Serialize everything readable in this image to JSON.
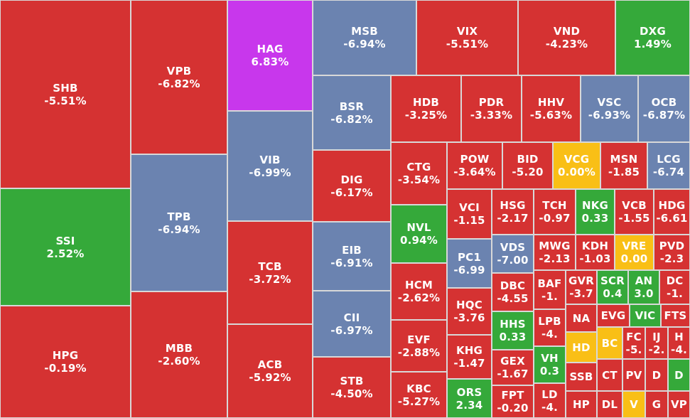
{
  "colors": {
    "down": "#d53232",
    "up": "#35a93a",
    "ceiling": "#c837ec",
    "floor": "#6b83b0",
    "flat": "#f9bf16"
  },
  "chart_data": {
    "type": "treemap",
    "title": "",
    "tiles": [
      {
        "ticker": "SHB",
        "change": "-5.51%",
        "value": -5.51,
        "status": "down"
      },
      {
        "ticker": "SSI",
        "change": "2.52%",
        "value": 2.52,
        "status": "up"
      },
      {
        "ticker": "HPG",
        "change": "-0.19%",
        "value": -0.19,
        "status": "down"
      },
      {
        "ticker": "VPB",
        "change": "-6.82%",
        "value": -6.82,
        "status": "down"
      },
      {
        "ticker": "TPB",
        "change": "-6.94%",
        "value": -6.94,
        "status": "floor"
      },
      {
        "ticker": "MBB",
        "change": "-2.60%",
        "value": -2.6,
        "status": "down"
      },
      {
        "ticker": "HAG",
        "change": "6.83%",
        "value": 6.83,
        "status": "ceiling"
      },
      {
        "ticker": "VIB",
        "change": "-6.99%",
        "value": -6.99,
        "status": "floor"
      },
      {
        "ticker": "TCB",
        "change": "-3.72%",
        "value": -3.72,
        "status": "down"
      },
      {
        "ticker": "ACB",
        "change": "-5.92%",
        "value": -5.92,
        "status": "down"
      },
      {
        "ticker": "MSB",
        "change": "-6.94%",
        "value": -6.94,
        "status": "floor"
      },
      {
        "ticker": "VIX",
        "change": "-5.51%",
        "value": -5.51,
        "status": "down"
      },
      {
        "ticker": "VND",
        "change": "-4.23%",
        "value": -4.23,
        "status": "down"
      },
      {
        "ticker": "DXG",
        "change": "1.49%",
        "value": 1.49,
        "status": "up"
      },
      {
        "ticker": "BSR",
        "change": "-6.82%",
        "value": -6.82,
        "status": "floor"
      },
      {
        "ticker": "DIG",
        "change": "-6.17%",
        "value": -6.17,
        "status": "down"
      },
      {
        "ticker": "EIB",
        "change": "-6.91%",
        "value": -6.91,
        "status": "floor"
      },
      {
        "ticker": "CII",
        "change": "-6.97%",
        "value": -6.97,
        "status": "floor"
      },
      {
        "ticker": "STB",
        "change": "-4.50%",
        "value": -4.5,
        "status": "down"
      },
      {
        "ticker": "HDB",
        "change": "-3.25%",
        "value": -3.25,
        "status": "down"
      },
      {
        "ticker": "PDR",
        "change": "-3.33%",
        "value": -3.33,
        "status": "down"
      },
      {
        "ticker": "HHV",
        "change": "-5.63%",
        "value": -5.63,
        "status": "down"
      },
      {
        "ticker": "VSC",
        "change": "-6.93%",
        "value": -6.93,
        "status": "floor"
      },
      {
        "ticker": "OCB",
        "change": "-6.87%",
        "value": -6.87,
        "status": "floor"
      },
      {
        "ticker": "CTG",
        "change": "-3.54%",
        "value": -3.54,
        "status": "down"
      },
      {
        "ticker": "NVL",
        "change": "0.94%",
        "value": 0.94,
        "status": "up"
      },
      {
        "ticker": "HCM",
        "change": "-2.62%",
        "value": -2.62,
        "status": "down"
      },
      {
        "ticker": "EVF",
        "change": "-2.88%",
        "value": -2.88,
        "status": "down"
      },
      {
        "ticker": "KBC",
        "change": "-5.27%",
        "value": -5.27,
        "status": "down"
      },
      {
        "ticker": "POW",
        "change": "-3.64%",
        "value": -3.64,
        "status": "down"
      },
      {
        "ticker": "BID",
        "change": "-5.20",
        "value": -5.2,
        "status": "down"
      },
      {
        "ticker": "VCG",
        "change": "0.00%",
        "value": 0.0,
        "status": "flat"
      },
      {
        "ticker": "MSN",
        "change": "-1.85",
        "value": -1.85,
        "status": "down"
      },
      {
        "ticker": "LCG",
        "change": "-6.74",
        "value": -6.74,
        "status": "floor"
      },
      {
        "ticker": "VCI",
        "change": "-1.15",
        "value": -1.15,
        "status": "down"
      },
      {
        "ticker": "HSG",
        "change": "-2.17",
        "value": -2.17,
        "status": "down"
      },
      {
        "ticker": "TCH",
        "change": "-0.97",
        "value": -0.97,
        "status": "down"
      },
      {
        "ticker": "NKG",
        "change": "0.33",
        "value": 0.33,
        "status": "up"
      },
      {
        "ticker": "VCB",
        "change": "-1.55",
        "value": -1.55,
        "status": "down"
      },
      {
        "ticker": "HDG",
        "change": "-6.61",
        "value": -6.61,
        "status": "down"
      },
      {
        "ticker": "PC1",
        "change": "-6.99",
        "value": -6.99,
        "status": "floor"
      },
      {
        "ticker": "VDS",
        "change": "-7.00",
        "value": -7.0,
        "status": "floor"
      },
      {
        "ticker": "MWG",
        "change": "-2.13",
        "value": -2.13,
        "status": "down"
      },
      {
        "ticker": "KDH",
        "change": "-1.03",
        "value": -1.03,
        "status": "down"
      },
      {
        "ticker": "VRE",
        "change": "0.00",
        "value": 0.0,
        "status": "flat"
      },
      {
        "ticker": "PVD",
        "change": "-2.3",
        "value": -2.3,
        "status": "down"
      },
      {
        "ticker": "HQC",
        "change": "-3.76",
        "value": -3.76,
        "status": "down"
      },
      {
        "ticker": "DBC",
        "change": "-4.55",
        "value": -4.55,
        "status": "down"
      },
      {
        "ticker": "BAF",
        "change": "-1.",
        "value": -1,
        "status": "down"
      },
      {
        "ticker": "GVR",
        "change": "-3.7",
        "value": -3.7,
        "status": "down"
      },
      {
        "ticker": "SCR",
        "change": "0.4",
        "value": 0.4,
        "status": "up"
      },
      {
        "ticker": "AN",
        "change": "3.0",
        "value": 3.0,
        "status": "up"
      },
      {
        "ticker": "DC",
        "change": "-1.",
        "value": -1,
        "status": "down"
      },
      {
        "ticker": "KHG",
        "change": "-1.47",
        "value": -1.47,
        "status": "down"
      },
      {
        "ticker": "HHS",
        "change": "0.33",
        "value": 0.33,
        "status": "up"
      },
      {
        "ticker": "LPB",
        "change": "-4.",
        "value": -4,
        "status": "down"
      },
      {
        "ticker": "NA",
        "change": "",
        "value": null,
        "status": "down"
      },
      {
        "ticker": "EVG",
        "change": "",
        "value": null,
        "status": "down"
      },
      {
        "ticker": "VIC",
        "change": "",
        "value": null,
        "status": "up"
      },
      {
        "ticker": "FTS",
        "change": "",
        "value": null,
        "status": "down"
      },
      {
        "ticker": "HD",
        "change": "",
        "value": null,
        "status": "flat"
      },
      {
        "ticker": "BC",
        "change": "",
        "value": null,
        "status": "flat"
      },
      {
        "ticker": "FC",
        "change": "-5.",
        "value": -5,
        "status": "down"
      },
      {
        "ticker": "IJ",
        "change": "-2.",
        "value": -2,
        "status": "down"
      },
      {
        "ticker": "H",
        "change": "-4.",
        "value": -4,
        "status": "down"
      },
      {
        "ticker": "ORS",
        "change": "2.34",
        "value": 2.34,
        "status": "up"
      },
      {
        "ticker": "GEX",
        "change": "-1.67",
        "value": -1.67,
        "status": "down"
      },
      {
        "ticker": "VH",
        "change": "0.3",
        "value": 0.3,
        "status": "up"
      },
      {
        "ticker": "SSB",
        "change": "",
        "value": null,
        "status": "down"
      },
      {
        "ticker": "CT",
        "change": "",
        "value": null,
        "status": "down"
      },
      {
        "ticker": "PV",
        "change": "",
        "value": null,
        "status": "down"
      },
      {
        "ticker": "D",
        "change": "",
        "value": null,
        "status": "down"
      },
      {
        "ticker": "D",
        "change": "",
        "value": null,
        "status": "up"
      },
      {
        "ticker": "FPT",
        "change": "-0.20",
        "value": -0.2,
        "status": "down"
      },
      {
        "ticker": "LD",
        "change": "-4.",
        "value": -4,
        "status": "down"
      },
      {
        "ticker": "HP",
        "change": "",
        "value": null,
        "status": "down"
      },
      {
        "ticker": "DL",
        "change": "",
        "value": null,
        "status": "down"
      },
      {
        "ticker": "V",
        "change": "",
        "value": null,
        "status": "flat"
      },
      {
        "ticker": "G",
        "change": "",
        "value": null,
        "status": "down"
      },
      {
        "ticker": "VP",
        "change": "",
        "value": null,
        "status": "down"
      }
    ]
  }
}
